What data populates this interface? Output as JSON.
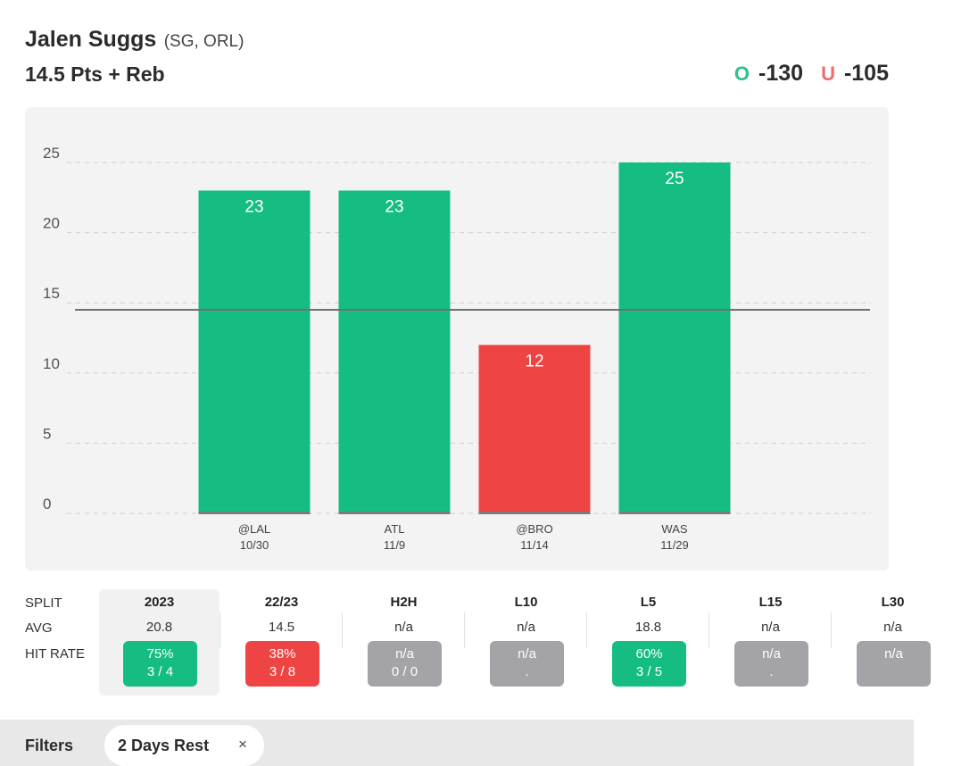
{
  "header": {
    "player_name": "Jalen Suggs",
    "player_position": "(SG, ORL)",
    "prop_title": "14.5 Pts + Reb",
    "over_letter": "O",
    "over_odds": "-130",
    "under_letter": "U",
    "under_odds": "-105"
  },
  "colors": {
    "over": "#15bd82",
    "under": "#ef4444",
    "neutral": "#a3a3a8",
    "line": "#707070"
  },
  "chart_data": {
    "type": "bar",
    "line_value": 14.5,
    "ylim": [
      0,
      25
    ],
    "yticks": [
      0,
      5,
      10,
      15,
      20,
      25
    ],
    "grid": true,
    "categories": [
      "@LAL",
      "ATL",
      "@BRO",
      "WAS"
    ],
    "dates": [
      "10/30",
      "11/9",
      "11/14",
      "11/29"
    ],
    "values": [
      23,
      23,
      12,
      25
    ],
    "results": [
      "over",
      "over",
      "under",
      "over"
    ]
  },
  "splits": {
    "labels": [
      "SPLIT",
      "AVG",
      "HIT RATE"
    ],
    "columns": [
      {
        "name": "2023",
        "avg": "20.8",
        "rate": "75%",
        "record": "3 / 4",
        "status": "over"
      },
      {
        "name": "22/23",
        "avg": "14.5",
        "rate": "38%",
        "record": "3 / 8",
        "status": "under"
      },
      {
        "name": "H2H",
        "avg": "n/a",
        "rate": "n/a",
        "record": "0 / 0",
        "status": "neutral"
      },
      {
        "name": "L10",
        "avg": "n/a",
        "rate": "n/a",
        "record": ".",
        "status": "neutral"
      },
      {
        "name": "L5",
        "avg": "18.8",
        "rate": "60%",
        "record": "3 / 5",
        "status": "over"
      },
      {
        "name": "L15",
        "avg": "n/a",
        "rate": "n/a",
        "record": ".",
        "status": "neutral"
      },
      {
        "name": "L30",
        "avg": "n/a",
        "rate": "n/a",
        "record": "",
        "status": "neutral"
      }
    ]
  },
  "filters": {
    "label": "Filters",
    "chip": "2 Days Rest",
    "close": "×"
  }
}
